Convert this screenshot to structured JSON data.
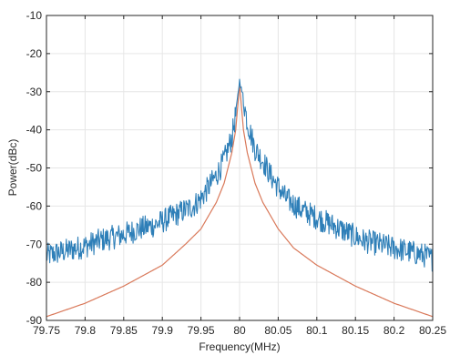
{
  "chart_data": {
    "type": "line",
    "title": "",
    "xlabel": "Frequency(MHz)",
    "ylabel": "Power(dBc)",
    "xlim": [
      79.75,
      80.25
    ],
    "ylim": [
      -90,
      -10
    ],
    "grid": true,
    "legend": "none",
    "x_ticks": [
      79.75,
      79.8,
      79.85,
      79.9,
      79.95,
      80,
      80.05,
      80.1,
      80.15,
      80.2,
      80.25
    ],
    "x_tick_labels": [
      "79.75",
      "79.8",
      "79.85",
      "79.9",
      "79.95",
      "80",
      "80.05",
      "80.1",
      "80.15",
      "80.2",
      "80.25"
    ],
    "y_ticks": [
      -90,
      -80,
      -70,
      -60,
      -50,
      -40,
      -30,
      -20,
      -10
    ],
    "y_tick_labels": [
      "-90",
      "-80",
      "-70",
      "-60",
      "-50",
      "-40",
      "-30",
      "-20",
      "-10"
    ],
    "series": [
      {
        "color": "#2e7fb8",
        "style": "noisy",
        "x": [
          79.75,
          79.77,
          79.79,
          79.8,
          79.82,
          79.84,
          79.85,
          79.87,
          79.89,
          79.9,
          79.92,
          79.94,
          79.95,
          79.96,
          79.97,
          79.98,
          79.99,
          79.995,
          80.0,
          80.005,
          80.01,
          80.02,
          80.03,
          80.04,
          80.05,
          80.06,
          80.08,
          80.1,
          80.12,
          80.14,
          80.16,
          80.18,
          80.2,
          80.22,
          80.24,
          80.25
        ],
        "y": [
          -73,
          -72,
          -71,
          -70.5,
          -69,
          -68,
          -67.5,
          -66,
          -65,
          -64,
          -62,
          -60,
          -58,
          -55,
          -52,
          -48,
          -42,
          -36,
          -27,
          -32,
          -38,
          -45,
          -48,
          -52,
          -55,
          -58,
          -61,
          -63,
          -65,
          -67,
          -69,
          -70,
          -71,
          -72,
          -73,
          -74
        ]
      },
      {
        "color": "#d9795a",
        "style": "smooth",
        "x": [
          79.75,
          79.8,
          79.85,
          79.9,
          79.93,
          79.95,
          79.97,
          79.98,
          79.99,
          79.995,
          80.0,
          80.005,
          80.01,
          80.02,
          80.03,
          80.05,
          80.07,
          80.1,
          80.15,
          80.2,
          80.25
        ],
        "y": [
          -89,
          -85.5,
          -81,
          -75.5,
          -70,
          -66,
          -59,
          -54,
          -46,
          -40,
          -28,
          -40,
          -46,
          -54,
          -59,
          -66,
          -71,
          -75.5,
          -81,
          -85.5,
          -89
        ]
      }
    ]
  }
}
